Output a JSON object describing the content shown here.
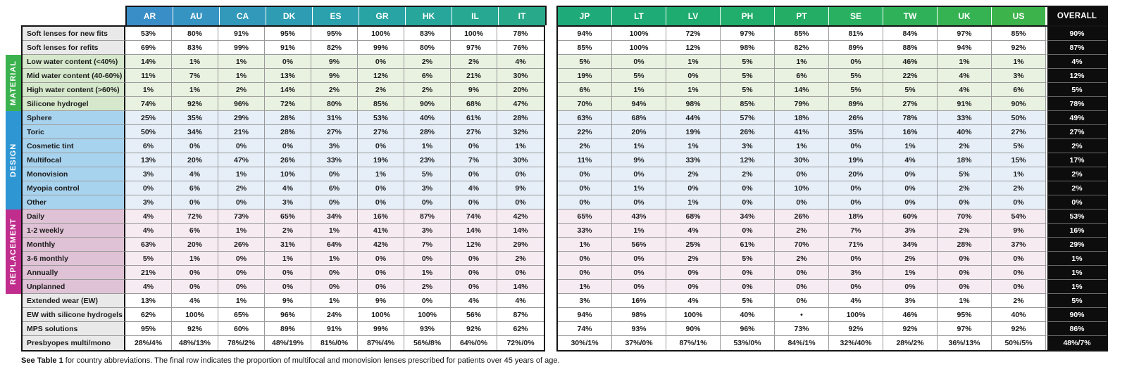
{
  "header": {
    "group1": [
      "AR",
      "AU",
      "CA",
      "DK",
      "ES",
      "GR",
      "HK",
      "IL",
      "IT"
    ],
    "group1_colors": [
      "#3a8ec8",
      "#3694c2",
      "#3299bb",
      "#2e9db4",
      "#2ba1ad",
      "#29a4a5",
      "#27a69c",
      "#27a893",
      "#28a98a"
    ],
    "group2": [
      "JP",
      "LT",
      "LV",
      "PH",
      "PT",
      "SE",
      "TW",
      "UK",
      "US"
    ],
    "group2_colors": [
      "#1faa7a",
      "#1eab75",
      "#1fac70",
      "#21ad6b",
      "#24ae65",
      "#29b060",
      "#2fb159",
      "#35b352",
      "#3cb44b"
    ],
    "overall_label": "OVERALL"
  },
  "bands": [
    {
      "name": "MATERIAL",
      "color": "#3cb24e"
    },
    {
      "name": "DESIGN",
      "color": "#2e96d3"
    },
    {
      "name": "REPLACEMENT",
      "color": "#c02d8c"
    }
  ],
  "rows": [
    {
      "label": "Soft lenses for new fits",
      "category": null,
      "group1": [
        "53%",
        "80%",
        "91%",
        "95%",
        "95%",
        "100%",
        "83%",
        "100%",
        "78%"
      ],
      "group2": [
        "94%",
        "100%",
        "72%",
        "97%",
        "85%",
        "81%",
        "84%",
        "97%",
        "85%"
      ],
      "overall": "90%"
    },
    {
      "label": "Soft lenses for refits",
      "category": null,
      "group1": [
        "69%",
        "83%",
        "99%",
        "91%",
        "82%",
        "99%",
        "80%",
        "97%",
        "76%"
      ],
      "group2": [
        "85%",
        "100%",
        "12%",
        "98%",
        "82%",
        "89%",
        "88%",
        "94%",
        "92%"
      ],
      "overall": "87%"
    },
    {
      "label": "Low water content (<40%)",
      "category": "MATERIAL",
      "group1": [
        "14%",
        "1%",
        "1%",
        "0%",
        "9%",
        "0%",
        "2%",
        "2%",
        "4%"
      ],
      "group2": [
        "5%",
        "0%",
        "1%",
        "5%",
        "1%",
        "0%",
        "46%",
        "1%",
        "1%"
      ],
      "overall": "4%"
    },
    {
      "label": "Mid water content (40-60%)",
      "category": "MATERIAL",
      "group1": [
        "11%",
        "7%",
        "1%",
        "13%",
        "9%",
        "12%",
        "6%",
        "21%",
        "30%"
      ],
      "group2": [
        "19%",
        "5%",
        "0%",
        "5%",
        "6%",
        "5%",
        "22%",
        "4%",
        "3%"
      ],
      "overall": "12%"
    },
    {
      "label": "High water content (>60%)",
      "category": "MATERIAL",
      "group1": [
        "1%",
        "1%",
        "2%",
        "14%",
        "2%",
        "2%",
        "2%",
        "9%",
        "20%"
      ],
      "group2": [
        "6%",
        "1%",
        "1%",
        "5%",
        "14%",
        "5%",
        "5%",
        "4%",
        "6%"
      ],
      "overall": "5%"
    },
    {
      "label": "Silicone hydrogel",
      "category": "MATERIAL",
      "group1": [
        "74%",
        "92%",
        "96%",
        "72%",
        "80%",
        "85%",
        "90%",
        "68%",
        "47%"
      ],
      "group2": [
        "70%",
        "94%",
        "98%",
        "85%",
        "79%",
        "89%",
        "27%",
        "91%",
        "90%"
      ],
      "overall": "78%"
    },
    {
      "label": "Sphere",
      "category": "DESIGN",
      "group1": [
        "25%",
        "35%",
        "29%",
        "28%",
        "31%",
        "53%",
        "40%",
        "61%",
        "28%"
      ],
      "group2": [
        "63%",
        "68%",
        "44%",
        "57%",
        "18%",
        "26%",
        "78%",
        "33%",
        "50%"
      ],
      "overall": "49%"
    },
    {
      "label": "Toric",
      "category": "DESIGN",
      "group1": [
        "50%",
        "34%",
        "21%",
        "28%",
        "27%",
        "27%",
        "28%",
        "27%",
        "32%"
      ],
      "group2": [
        "22%",
        "20%",
        "19%",
        "26%",
        "41%",
        "35%",
        "16%",
        "40%",
        "27%"
      ],
      "overall": "27%"
    },
    {
      "label": "Cosmetic tint",
      "category": "DESIGN",
      "group1": [
        "6%",
        "0%",
        "0%",
        "0%",
        "3%",
        "0%",
        "1%",
        "0%",
        "1%"
      ],
      "group2": [
        "2%",
        "1%",
        "1%",
        "3%",
        "1%",
        "0%",
        "1%",
        "2%",
        "5%"
      ],
      "overall": "2%"
    },
    {
      "label": "Multifocal",
      "category": "DESIGN",
      "group1": [
        "13%",
        "20%",
        "47%",
        "26%",
        "33%",
        "19%",
        "23%",
        "7%",
        "30%"
      ],
      "group2": [
        "11%",
        "9%",
        "33%",
        "12%",
        "30%",
        "19%",
        "4%",
        "18%",
        "15%"
      ],
      "overall": "17%"
    },
    {
      "label": "Monovision",
      "category": "DESIGN",
      "group1": [
        "3%",
        "4%",
        "1%",
        "10%",
        "0%",
        "1%",
        "5%",
        "0%",
        "0%"
      ],
      "group2": [
        "0%",
        "0%",
        "2%",
        "2%",
        "0%",
        "20%",
        "0%",
        "5%",
        "1%"
      ],
      "overall": "2%"
    },
    {
      "label": "Myopia control",
      "category": "DESIGN",
      "group1": [
        "0%",
        "6%",
        "2%",
        "4%",
        "6%",
        "0%",
        "3%",
        "4%",
        "9%"
      ],
      "group2": [
        "0%",
        "1%",
        "0%",
        "0%",
        "10%",
        "0%",
        "0%",
        "2%",
        "2%"
      ],
      "overall": "2%"
    },
    {
      "label": "Other",
      "category": "DESIGN",
      "group1": [
        "3%",
        "0%",
        "0%",
        "3%",
        "0%",
        "0%",
        "0%",
        "0%",
        "0%"
      ],
      "group2": [
        "0%",
        "0%",
        "1%",
        "0%",
        "0%",
        "0%",
        "0%",
        "0%",
        "0%"
      ],
      "overall": "0%"
    },
    {
      "label": "Daily",
      "category": "REPLACEMENT",
      "group1": [
        "4%",
        "72%",
        "73%",
        "65%",
        "34%",
        "16%",
        "87%",
        "74%",
        "42%"
      ],
      "group2": [
        "65%",
        "43%",
        "68%",
        "34%",
        "26%",
        "18%",
        "60%",
        "70%",
        "54%"
      ],
      "overall": "53%"
    },
    {
      "label": "1-2 weekly",
      "category": "REPLACEMENT",
      "group1": [
        "4%",
        "6%",
        "1%",
        "2%",
        "1%",
        "41%",
        "3%",
        "14%",
        "14%"
      ],
      "group2": [
        "33%",
        "1%",
        "4%",
        "0%",
        "2%",
        "7%",
        "3%",
        "2%",
        "9%"
      ],
      "overall": "16%"
    },
    {
      "label": "Monthly",
      "category": "REPLACEMENT",
      "group1": [
        "63%",
        "20%",
        "26%",
        "31%",
        "64%",
        "42%",
        "7%",
        "12%",
        "29%"
      ],
      "group2": [
        "1%",
        "56%",
        "25%",
        "61%",
        "70%",
        "71%",
        "34%",
        "28%",
        "37%"
      ],
      "overall": "29%"
    },
    {
      "label": "3-6 monthly",
      "category": "REPLACEMENT",
      "group1": [
        "5%",
        "1%",
        "0%",
        "1%",
        "1%",
        "0%",
        "0%",
        "0%",
        "2%"
      ],
      "group2": [
        "0%",
        "0%",
        "2%",
        "5%",
        "2%",
        "0%",
        "2%",
        "0%",
        "0%"
      ],
      "overall": "1%"
    },
    {
      "label": "Annually",
      "category": "REPLACEMENT",
      "group1": [
        "21%",
        "0%",
        "0%",
        "0%",
        "0%",
        "0%",
        "1%",
        "0%",
        "0%"
      ],
      "group2": [
        "0%",
        "0%",
        "0%",
        "0%",
        "0%",
        "3%",
        "1%",
        "0%",
        "0%"
      ],
      "overall": "1%"
    },
    {
      "label": "Unplanned",
      "category": "REPLACEMENT",
      "group1": [
        "4%",
        "0%",
        "0%",
        "0%",
        "0%",
        "0%",
        "2%",
        "0%",
        "14%"
      ],
      "group2": [
        "1%",
        "0%",
        "0%",
        "0%",
        "0%",
        "0%",
        "0%",
        "0%",
        "0%"
      ],
      "overall": "1%"
    },
    {
      "label": "Extended wear (EW)",
      "category": null,
      "group1": [
        "13%",
        "4%",
        "1%",
        "9%",
        "1%",
        "9%",
        "0%",
        "4%",
        "4%"
      ],
      "group2": [
        "3%",
        "16%",
        "4%",
        "5%",
        "0%",
        "4%",
        "3%",
        "1%",
        "2%"
      ],
      "overall": "5%"
    },
    {
      "label": "EW with silicone hydrogels",
      "category": null,
      "group1": [
        "62%",
        "100%",
        "65%",
        "96%",
        "24%",
        "100%",
        "100%",
        "56%",
        "87%"
      ],
      "group2": [
        "94%",
        "98%",
        "100%",
        "40%",
        "•",
        "100%",
        "46%",
        "95%",
        "40%"
      ],
      "overall": "90%"
    },
    {
      "label": "MPS solutions",
      "category": null,
      "group1": [
        "95%",
        "92%",
        "60%",
        "89%",
        "91%",
        "99%",
        "93%",
        "92%",
        "62%"
      ],
      "group2": [
        "74%",
        "93%",
        "90%",
        "96%",
        "73%",
        "92%",
        "92%",
        "97%",
        "92%"
      ],
      "overall": "86%"
    },
    {
      "label": "Presbyopes multi/mono",
      "category": null,
      "group1": [
        "28%/4%",
        "48%/13%",
        "78%/2%",
        "48%/19%",
        "81%/0%",
        "87%/4%",
        "56%/8%",
        "64%/0%",
        "72%/0%"
      ],
      "group2": [
        "30%/1%",
        "37%/0%",
        "87%/1%",
        "53%/0%",
        "84%/1%",
        "32%/40%",
        "28%/2%",
        "36%/13%",
        "50%/5%"
      ],
      "overall": "48%/7%"
    }
  ],
  "footnote": {
    "bold": "See Table 1",
    "rest": " for country abbreviations. The final row indicates the proportion of multifocal and monovision lenses prescribed for patients over 45 years of age."
  }
}
